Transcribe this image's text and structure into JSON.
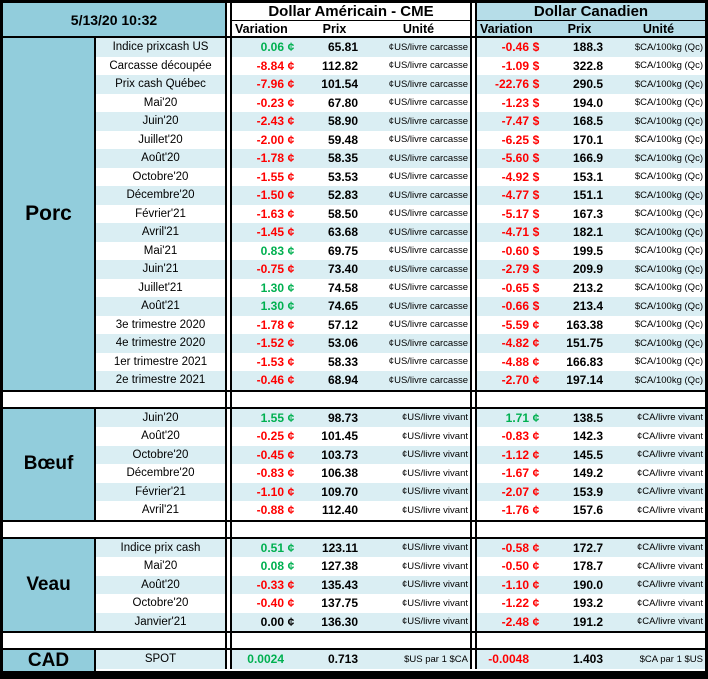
{
  "header": {
    "datetime": "5/13/20 10:32",
    "us_title": "Dollar Américain - CME",
    "ca_title": "Dollar Canadien",
    "col_variation": "Variation",
    "col_prix": "Prix",
    "col_unite": "Unité"
  },
  "colors": {
    "section_blue": "#92CDDC",
    "row_alt_blue": "#DAEEF3",
    "ca_header_bg": "#B6DDE8",
    "positive_green": "#00B050",
    "negative_red": "#FF0000"
  },
  "sections": [
    {
      "name": "Porc",
      "us_unit": "¢US/livre carcasse",
      "ca_unit": "$CA/100kg (Qc)",
      "rows": [
        [
          "Indice prixcash US",
          "0.06",
          "¢",
          "65.81",
          "-0.46",
          "$",
          "188.3"
        ],
        [
          "Carcasse découpée",
          "-8.84",
          "¢",
          "112.82",
          "-1.09",
          "$",
          "322.8"
        ],
        [
          "Prix cash Québec",
          "-7.96",
          "¢",
          "101.54",
          "-22.76",
          "$",
          "290.5"
        ],
        [
          "Mai'20",
          "-0.23",
          "¢",
          "67.80",
          "-1.23",
          "$",
          "194.0"
        ],
        [
          "Juin'20",
          "-2.43",
          "¢",
          "58.90",
          "-7.47",
          "$",
          "168.5"
        ],
        [
          "Juillet'20",
          "-2.00",
          "¢",
          "59.48",
          "-6.25",
          "$",
          "170.1"
        ],
        [
          "Août'20",
          "-1.78",
          "¢",
          "58.35",
          "-5.60",
          "$",
          "166.9"
        ],
        [
          "Octobre'20",
          "-1.55",
          "¢",
          "53.53",
          "-4.92",
          "$",
          "153.1"
        ],
        [
          "Décembre'20",
          "-1.50",
          "¢",
          "52.83",
          "-4.77",
          "$",
          "151.1"
        ],
        [
          "Février'21",
          "-1.63",
          "¢",
          "58.50",
          "-5.17",
          "$",
          "167.3"
        ],
        [
          "Avril'21",
          "-1.45",
          "¢",
          "63.68",
          "-4.71",
          "$",
          "182.1"
        ],
        [
          "Mai'21",
          "0.83",
          "¢",
          "69.75",
          "-0.60",
          "$",
          "199.5"
        ],
        [
          "Juin'21",
          "-0.75",
          "¢",
          "73.40",
          "-2.79",
          "$",
          "209.9"
        ],
        [
          "Juillet'21",
          "1.30",
          "¢",
          "74.58",
          "-0.65",
          "$",
          "213.2"
        ],
        [
          "Août'21",
          "1.30",
          "¢",
          "74.65",
          "-0.66",
          "$",
          "213.4"
        ],
        [
          "3e trimestre 2020",
          "-1.78",
          "¢",
          "57.12",
          "-5.59",
          "¢",
          "163.38"
        ],
        [
          "4e trimestre 2020",
          "-1.52",
          "¢",
          "53.06",
          "-4.82",
          "¢",
          "151.75"
        ],
        [
          "1er trimestre 2021",
          "-1.53",
          "¢",
          "58.33",
          "-4.88",
          "¢",
          "166.83"
        ],
        [
          "2e trimestre 2021",
          "-0.46",
          "¢",
          "68.94",
          "-2.70",
          "¢",
          "197.14"
        ]
      ]
    },
    {
      "name": "Bœuf",
      "us_unit": "¢US/livre vivant",
      "ca_unit": "¢CA/livre vivant",
      "rows": [
        [
          "Juin'20",
          "1.55",
          "¢",
          "98.73",
          "1.71",
          "¢",
          "138.5"
        ],
        [
          "Août'20",
          "-0.25",
          "¢",
          "101.45",
          "-0.83",
          "¢",
          "142.3"
        ],
        [
          "Octobre'20",
          "-0.45",
          "¢",
          "103.73",
          "-1.12",
          "¢",
          "145.5"
        ],
        [
          "Décembre'20",
          "-0.83",
          "¢",
          "106.38",
          "-1.67",
          "¢",
          "149.2"
        ],
        [
          "Février'21",
          "-1.10",
          "¢",
          "109.70",
          "-2.07",
          "¢",
          "153.9"
        ],
        [
          "Avril'21",
          "-0.88",
          "¢",
          "112.40",
          "-1.76",
          "¢",
          "157.6"
        ]
      ]
    },
    {
      "name": "Veau",
      "us_unit": "¢US/livre vivant",
      "ca_unit": "¢CA/livre vivant",
      "rows": [
        [
          "Indice prix cash",
          "0.51",
          "¢",
          "123.11",
          "-0.58",
          "¢",
          "172.7"
        ],
        [
          "Mai'20",
          "0.08",
          "¢",
          "127.38",
          "-0.50",
          "¢",
          "178.7"
        ],
        [
          "Août'20",
          "-0.33",
          "¢",
          "135.43",
          "-1.10",
          "¢",
          "190.0"
        ],
        [
          "Octobre'20",
          "-0.40",
          "¢",
          "137.75",
          "-1.22",
          "¢",
          "193.2"
        ],
        [
          "Janvier'21",
          "0.00",
          "¢",
          "136.30",
          "-2.48",
          "¢",
          "191.2"
        ]
      ]
    },
    {
      "name": "CAD",
      "us_unit": "$US par 1 $CA",
      "ca_unit": "$CA par 1 $US",
      "rows": [
        [
          "SPOT",
          "0.0024",
          "",
          "0.713",
          "-0.0048",
          "",
          "1.403"
        ]
      ]
    }
  ]
}
